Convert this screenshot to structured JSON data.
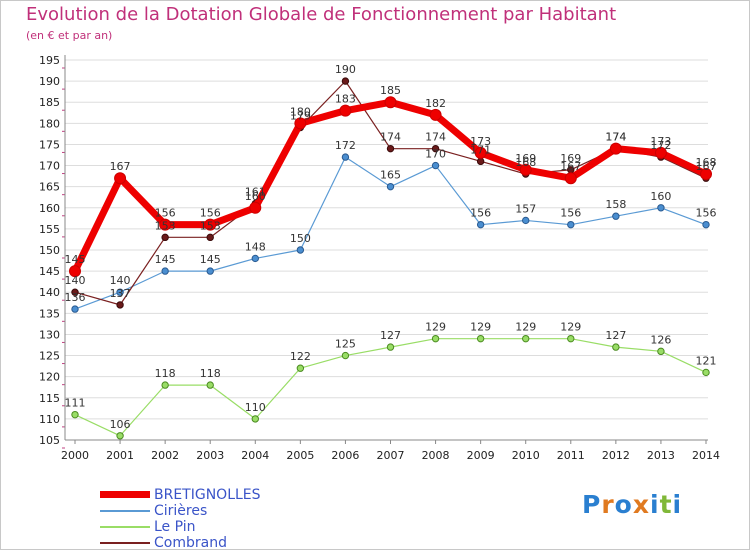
{
  "title": "Evolution de la Dotation Globale de Fonctionnement par Habitant",
  "subtitle": "(en € et par an)",
  "logo": {
    "letters": [
      "P",
      "r",
      "o",
      "x",
      "i",
      "t",
      "i"
    ],
    "colors": [
      "#2a7fd0",
      "#e07a20",
      "#2a7fd0",
      "#e07a20",
      "#2a7fd0",
      "#80b838",
      "#2a7fd0"
    ]
  },
  "chart_data": {
    "type": "line",
    "title": "Evolution de la Dotation Globale de Fonctionnement par Habitant",
    "ylabel": "(en € et par an)",
    "x": [
      "2000",
      "2001",
      "2002",
      "2003",
      "2004",
      "2005",
      "2006",
      "2007",
      "2008",
      "2009",
      "2010",
      "2011",
      "2012",
      "2013",
      "2014"
    ],
    "ylim": [
      105,
      195
    ],
    "yticks": [
      "105",
      "110",
      "115",
      "120",
      "125",
      "130",
      "135",
      "140",
      "145",
      "150",
      "155",
      "160",
      "165",
      "170",
      "175",
      "180",
      "185",
      "190",
      "195"
    ],
    "grid": true,
    "series": [
      {
        "name": "BRETIGNOLLES",
        "color": "#ee0000",
        "values": [
          145,
          167,
          156,
          156,
          160,
          180,
          183,
          185,
          182,
          173,
          169,
          167,
          174,
          173,
          168
        ],
        "labels": [
          "145",
          "167",
          "156",
          "156",
          "160",
          "180",
          "183",
          "185",
          "182",
          "173",
          "169",
          "167",
          "174",
          "173",
          "168"
        ]
      },
      {
        "name": "Cirières",
        "color": "#5a9ad4",
        "values": [
          136,
          140,
          145,
          145,
          148,
          150,
          172,
          165,
          170,
          156,
          157,
          156,
          158,
          160,
          156
        ],
        "labels": [
          "136",
          "140",
          "145",
          "145",
          "148",
          "150",
          "172",
          "165",
          "170",
          "156",
          "157",
          "156",
          "158",
          "160",
          "156"
        ]
      },
      {
        "name": "Le Pin",
        "color": "#99dd66",
        "values": [
          111,
          106,
          118,
          118,
          110,
          122,
          125,
          127,
          129,
          129,
          129,
          129,
          127,
          126,
          121
        ],
        "labels": [
          "111",
          "106",
          "118",
          "118",
          "110",
          "122",
          "125",
          "127",
          "129",
          "129",
          "129",
          "129",
          "127",
          "126",
          "121"
        ]
      },
      {
        "name": "Combrand",
        "color": "#7a2020",
        "values": [
          140,
          137,
          153,
          153,
          161,
          179,
          190,
          174,
          174,
          171,
          168,
          169,
          174,
          172,
          167
        ],
        "labels": [
          "140",
          "137",
          "153",
          "153",
          "161",
          "179",
          "190",
          "174",
          "174",
          "171",
          "168",
          "169",
          "174",
          "172",
          "167"
        ]
      }
    ],
    "legend": "bottom-left"
  }
}
